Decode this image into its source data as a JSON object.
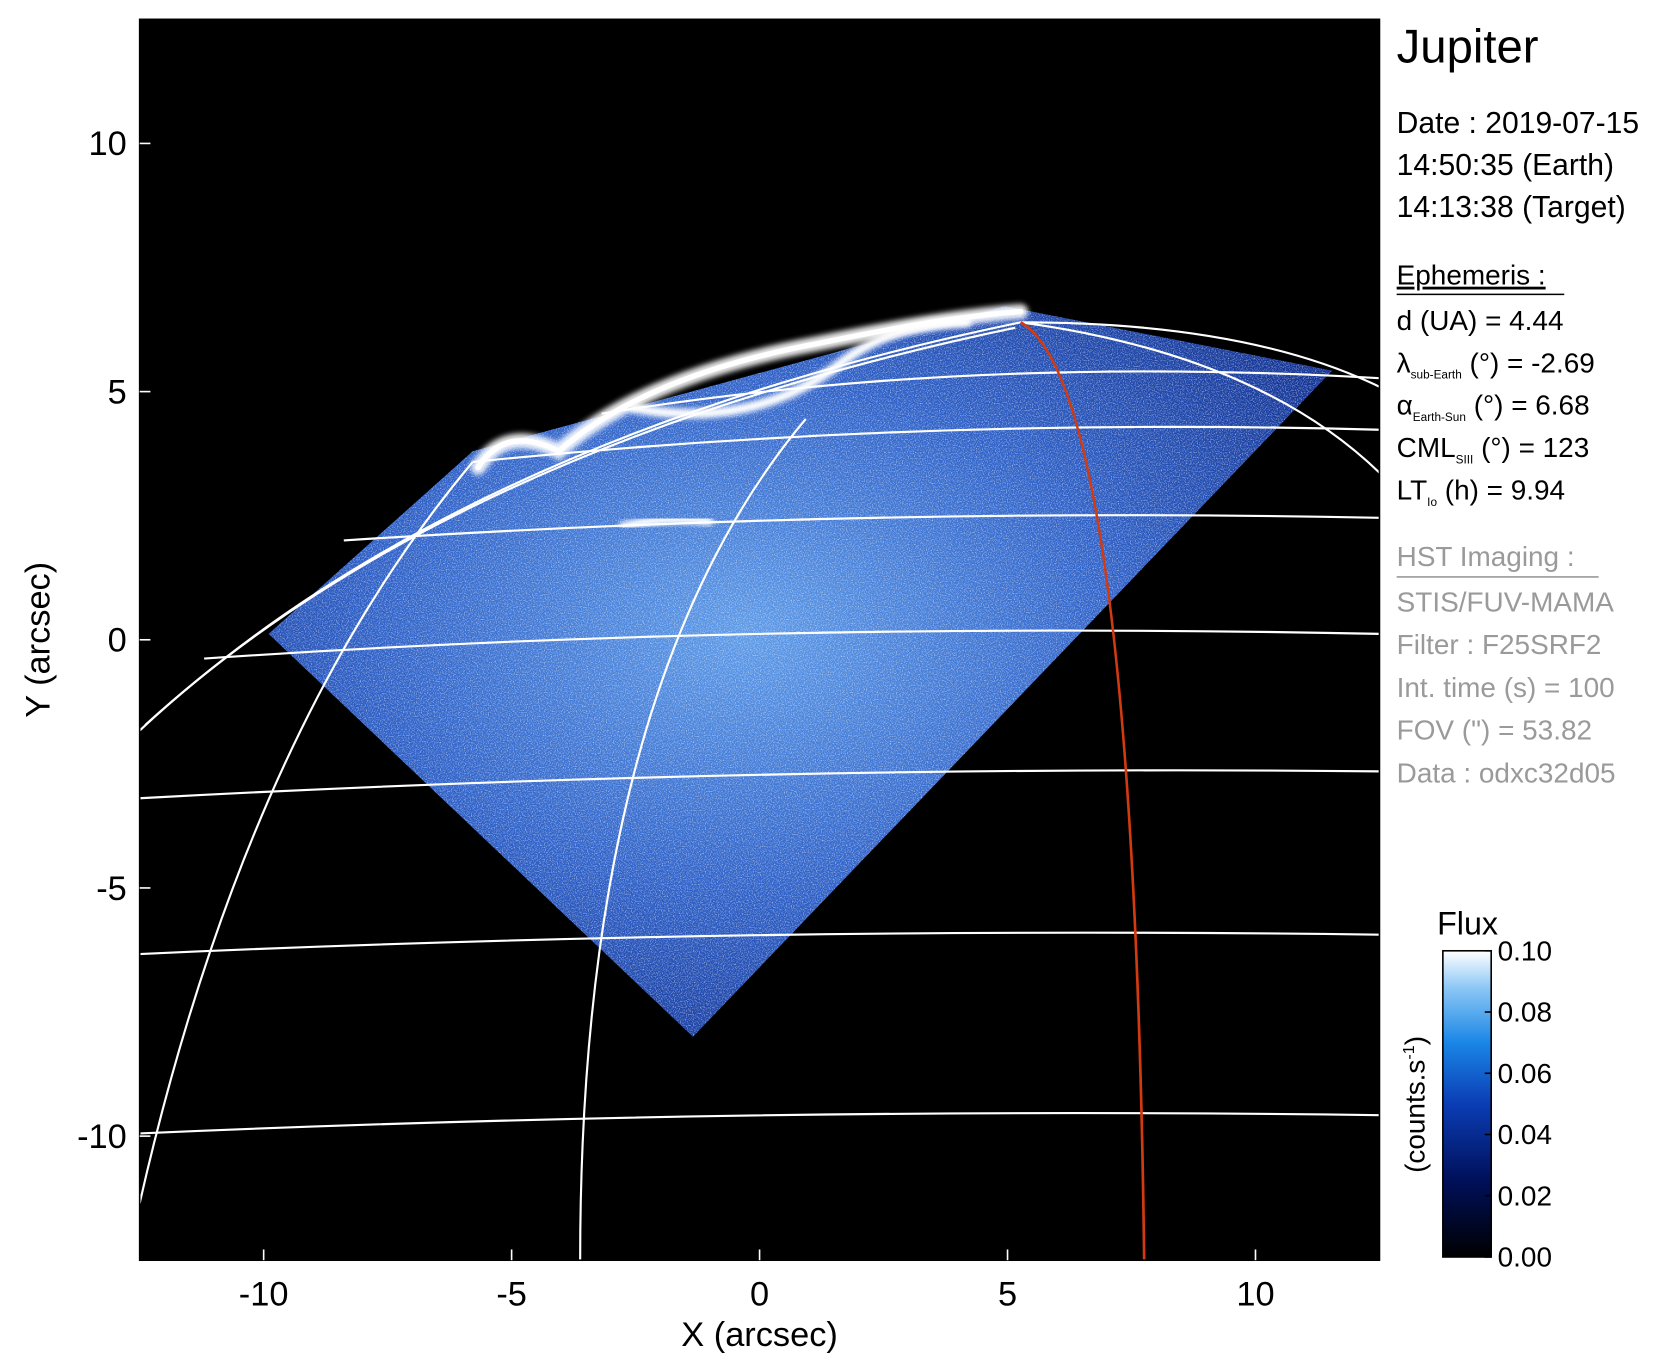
{
  "chart_data": {
    "type": "image",
    "title": "Jupiter",
    "xlabel": "X (arcsec)",
    "ylabel": "Y (arcsec)",
    "xlim": [
      -12.5,
      12.5
    ],
    "ylim": [
      -12.5,
      12.5
    ],
    "xticks": [
      -10,
      -5,
      0,
      5,
      10
    ],
    "yticks": [
      -10,
      -5,
      0,
      5,
      10
    ],
    "header": [
      "Date : 2019-07-15",
      "14:50:35 (Earth)",
      "14:13:38 (Target)"
    ],
    "ephemeris_title": "Ephemeris :",
    "ephemeris": [
      {
        "main": "d (UA)    = 4.44"
      },
      {
        "main": "λ",
        "sub": "sub-Earth",
        "rest": " (°) = -2.69"
      },
      {
        "main": "α",
        "sub": "Earth-Sun",
        "rest": " (°) = 6.68"
      },
      {
        "main": "CML",
        "sub": "SIII",
        "rest": " (°) = 123"
      },
      {
        "main": "LT",
        "sub": "Io",
        "rest": " (h) = 9.94"
      }
    ],
    "imaging_title": "HST Imaging :",
    "imaging": [
      "STIS/FUV-MAMA",
      "Filter : F25SRF2",
      "Int. time (s) = 100",
      "FOV (\") = 53.82",
      "Data : odxc32d05"
    ],
    "colorbar": {
      "title": "Flux",
      "label": "(counts.s",
      "label_sup": "-1",
      "label_end": ")",
      "clim": [
        0,
        0.1
      ],
      "ticks": [
        {
          "value": 0,
          "label": "0.00"
        },
        {
          "value": 0.02,
          "label": "0.02"
        },
        {
          "value": 0.04,
          "label": "0.04"
        },
        {
          "value": 0.06,
          "label": "0.06"
        },
        {
          "value": 0.08,
          "label": "0.08"
        },
        {
          "value": 0.1,
          "label": "0.10"
        }
      ]
    }
  }
}
